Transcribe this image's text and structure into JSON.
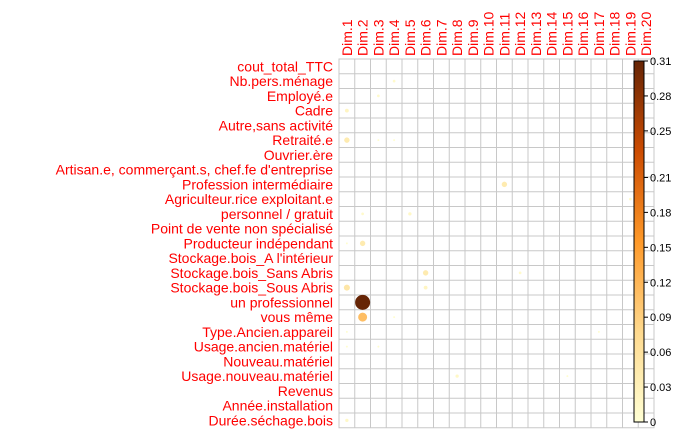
{
  "chart_data": {
    "type": "heatmap",
    "style": "correlation-plot circles",
    "columns": [
      "Dim.1",
      "Dim.2",
      "Dim.3",
      "Dim.4",
      "Dim.5",
      "Dim.6",
      "Dim.7",
      "Dim.8",
      "Dim.9",
      "Dim.10",
      "Dim.11",
      "Dim.12",
      "Dim.13",
      "Dim.14",
      "Dim.15",
      "Dim.16",
      "Dim.17",
      "Dim.18",
      "Dim.19",
      "Dim.20"
    ],
    "rows": [
      "cout_total_TTC",
      "Nb.pers.ménage",
      "Employé.e",
      "Cadre",
      "Autre,sans activité",
      "Retraité.e",
      "Ouvrier.ère",
      "Artisan.e, commerçant.s, chef.fe d'entreprise",
      "Profession intermédiaire",
      "Agriculteur.rice exploitant.e",
      "personnel / gratuit",
      "Point de vente non spécialisé",
      "Producteur indépendant",
      "Stockage.bois_A l'intérieur",
      "Stockage.bois_Sans Abris",
      "Stockage.bois_Sous Abris",
      "un professionnel",
      "vous même",
      "Type.Ancien.appareil",
      "Usage.ancien.matériel",
      "Nouveau.matériel",
      "Usage.nouveau.matériel",
      "Revenus",
      "Année.installation",
      "Durée.séchage.bois"
    ],
    "cells": [
      {
        "row": 1,
        "col": 3,
        "value": 0.01
      },
      {
        "row": 2,
        "col": 2,
        "value": 0.01
      },
      {
        "row": 3,
        "col": 0,
        "value": 0.02
      },
      {
        "row": 5,
        "col": 0,
        "value": 0.04
      },
      {
        "row": 5,
        "col": 2,
        "value": 0.005
      },
      {
        "row": 5,
        "col": 3,
        "value": 0.005
      },
      {
        "row": 8,
        "col": 10,
        "value": 0.04
      },
      {
        "row": 9,
        "col": 18,
        "value": 0.01
      },
      {
        "row": 10,
        "col": 1,
        "value": 0.01
      },
      {
        "row": 10,
        "col": 4,
        "value": 0.015
      },
      {
        "row": 12,
        "col": 0,
        "value": 0.005
      },
      {
        "row": 12,
        "col": 1,
        "value": 0.04
      },
      {
        "row": 14,
        "col": 5,
        "value": 0.04
      },
      {
        "row": 14,
        "col": 11,
        "value": 0.01
      },
      {
        "row": 15,
        "col": 0,
        "value": 0.05
      },
      {
        "row": 15,
        "col": 5,
        "value": 0.02
      },
      {
        "row": 16,
        "col": 1,
        "value": 0.31
      },
      {
        "row": 17,
        "col": 1,
        "value": 0.11
      },
      {
        "row": 17,
        "col": 3,
        "value": 0.005
      },
      {
        "row": 18,
        "col": 0,
        "value": 0.005
      },
      {
        "row": 18,
        "col": 16,
        "value": 0.005
      },
      {
        "row": 19,
        "col": 0,
        "value": 0.005
      },
      {
        "row": 19,
        "col": 2,
        "value": 0.005
      },
      {
        "row": 21,
        "col": 7,
        "value": 0.015
      },
      {
        "row": 21,
        "col": 14,
        "value": 0.005
      },
      {
        "row": 24,
        "col": 0,
        "value": 0.015
      }
    ],
    "colorbar": {
      "min": 0,
      "max": 0.31,
      "ticks": [
        0,
        0.03,
        0.06,
        0.09,
        0.12,
        0.15,
        0.18,
        0.21,
        0.25,
        0.28,
        0.31
      ],
      "tick_labels": [
        "0",
        "0.03",
        "0.06",
        "0.09",
        "0.12",
        "0.15",
        "0.18",
        "0.21",
        "0.25",
        "0.28",
        "0.31"
      ],
      "colors": [
        "#ffffd4",
        "#fed98e",
        "#fe9929",
        "#cc4c02",
        "#662506"
      ]
    },
    "grid": true,
    "legend_placement": "right"
  }
}
